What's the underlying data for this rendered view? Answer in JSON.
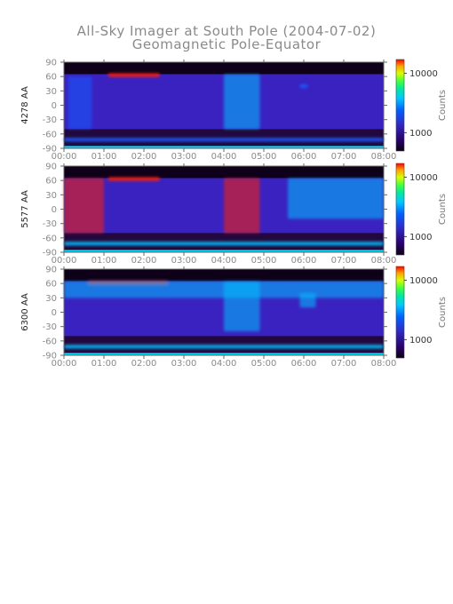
{
  "title": "All-Sky Imager at South Pole (2004-07-02)",
  "subtitle": "Geomagnetic Pole-Equator",
  "chart_data": {
    "type": "heatmap",
    "title": "All-Sky Imager at South Pole (2004-07-02)",
    "subtitle": "Geomagnetic Pole-Equator",
    "x_ticks": [
      "00:00",
      "01:00",
      "02:00",
      "03:00",
      "04:00",
      "05:00",
      "06:00",
      "07:00",
      "08:00"
    ],
    "x_range_hours": [
      0,
      8
    ],
    "y_ticks": [
      90,
      60,
      30,
      0,
      -30,
      -60,
      -90
    ],
    "y_range": [
      -90,
      90
    ],
    "colorbar_title": "Counts",
    "colorbar_ticks": [
      10000,
      1000
    ],
    "panels": [
      {
        "ylabel": "4278 AA",
        "data_region": [
          -50,
          65
        ],
        "features": [
          {
            "time_h": [
              1.1,
              2.4
            ],
            "y": 63,
            "level": "high"
          },
          {
            "time_h": [
              0.1,
              0.7
            ],
            "y": [
              -50,
              60
            ],
            "level": "low-medium"
          },
          {
            "time_h": [
              4.0,
              4.9
            ],
            "y": [
              -50,
              65
            ],
            "level": "medium"
          },
          {
            "time_h": [
              5.9,
              6.1
            ],
            "y": 40,
            "level": "low-medium"
          },
          {
            "time_h": [
              0,
              8
            ],
            "y": -72,
            "level": "low-medium"
          }
        ]
      },
      {
        "ylabel": "5577 AA",
        "data_region": [
          -50,
          65
        ],
        "features": [
          {
            "time_h": [
              1.1,
              2.4
            ],
            "y": 63,
            "level": "high"
          },
          {
            "time_h": [
              0.0,
              1.0
            ],
            "y": [
              -50,
              65
            ],
            "level": "high"
          },
          {
            "time_h": [
              4.0,
              4.9
            ],
            "y": [
              -50,
              65
            ],
            "level": "high"
          },
          {
            "time_h": [
              5.6,
              8.0
            ],
            "y": [
              -20,
              65
            ],
            "level": "medium"
          },
          {
            "time_h": [
              0,
              8
            ],
            "y": -72,
            "level": "medium"
          }
        ]
      },
      {
        "ylabel": "6300 AA",
        "data_region": [
          -50,
          65
        ],
        "features": [
          {
            "time_h": [
              0.6,
              2.6
            ],
            "y": 62,
            "level": "high"
          },
          {
            "time_h": [
              0,
              8
            ],
            "y": [
              30,
              65
            ],
            "level": "medium"
          },
          {
            "time_h": [
              4.0,
              4.9
            ],
            "y": [
              -40,
              65
            ],
            "level": "medium"
          },
          {
            "time_h": [
              5.9,
              6.3
            ],
            "y": [
              10,
              40
            ],
            "level": "medium"
          },
          {
            "time_h": [
              0,
              8
            ],
            "y": -72,
            "level": "medium"
          }
        ]
      }
    ],
    "colors": [
      "#0b0014",
      "#2a006a",
      "#2e2cc8",
      "#0060ff",
      "#00c8ff",
      "#00e8a0",
      "#40ff40",
      "#d8ff00",
      "#ffa000",
      "#ff0000"
    ]
  }
}
